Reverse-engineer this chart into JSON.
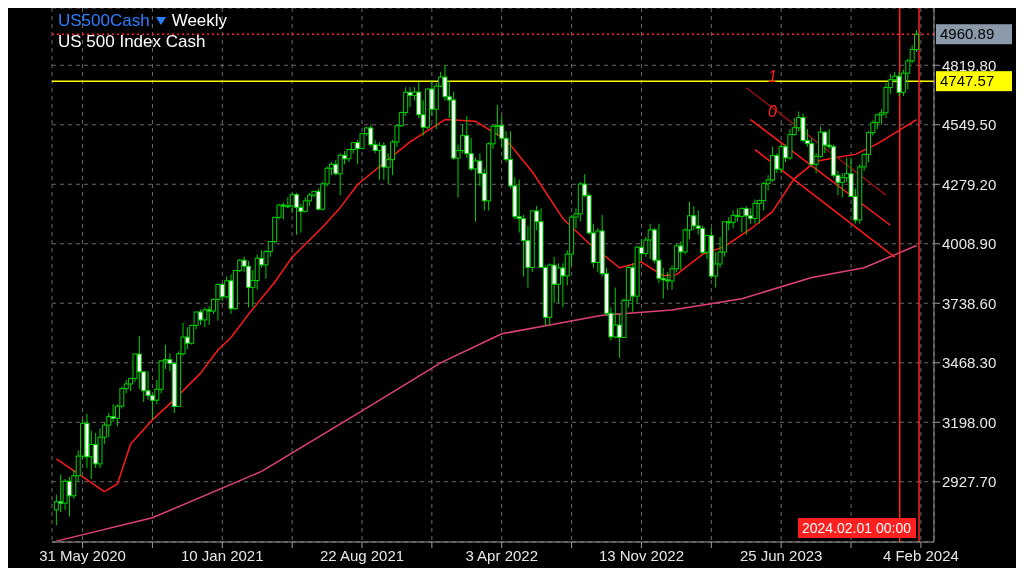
{
  "chart_data": {
    "type": "candlestick",
    "title": "US500Cash",
    "subtitle": "US 500 Index Cash",
    "annotations": [
      "Weekly",
      {
        "text": "1",
        "x": "2023-06-11",
        "y": 4763
      },
      {
        "text": "0",
        "x": "2023-06-11",
        "y": 4604
      }
    ],
    "color": "#00d000",
    "x": [
      "2020-04-19",
      "2020-04-26",
      "2020-05-03",
      "2020-05-10",
      "2020-05-17",
      "2020-05-24",
      "2020-05-31",
      "2020-06-07",
      "2020-06-14",
      "2020-06-21",
      "2020-06-28",
      "2020-07-05",
      "2020-07-12",
      "2020-07-19",
      "2020-07-26",
      "2020-08-02",
      "2020-08-09",
      "2020-08-16",
      "2020-08-23",
      "2020-08-30",
      "2020-09-06",
      "2020-09-13",
      "2020-09-20",
      "2020-09-27",
      "2020-10-04",
      "2020-10-11",
      "2020-10-18",
      "2020-10-25",
      "2020-11-01",
      "2020-11-08",
      "2020-11-15",
      "2020-11-22",
      "2020-11-29",
      "2020-12-06",
      "2020-12-13",
      "2020-12-20",
      "2020-12-27",
      "2021-01-03",
      "2021-01-10",
      "2021-01-17",
      "2021-01-24",
      "2021-01-31",
      "2021-02-07",
      "2021-02-14",
      "2021-02-21",
      "2021-02-28",
      "2021-03-07",
      "2021-03-14",
      "2021-03-21",
      "2021-03-28",
      "2021-04-04",
      "2021-04-11",
      "2021-04-18",
      "2021-04-25",
      "2021-05-02",
      "2021-05-09",
      "2021-05-16",
      "2021-05-23",
      "2021-05-30",
      "2021-06-06",
      "2021-06-13",
      "2021-06-20",
      "2021-06-27",
      "2021-07-04",
      "2021-07-11",
      "2021-07-18",
      "2021-07-25",
      "2021-08-01",
      "2021-08-08",
      "2021-08-15",
      "2021-08-22",
      "2021-08-29",
      "2021-09-05",
      "2021-09-12",
      "2021-09-19",
      "2021-09-26",
      "2021-10-03",
      "2021-10-10",
      "2021-10-17",
      "2021-10-24",
      "2021-10-31",
      "2021-11-07",
      "2021-11-14",
      "2021-11-21",
      "2021-11-28",
      "2021-12-05",
      "2021-12-12",
      "2021-12-19",
      "2021-12-26",
      "2022-01-02",
      "2022-01-09",
      "2022-01-16",
      "2022-01-23",
      "2022-01-30",
      "2022-02-06",
      "2022-02-13",
      "2022-02-20",
      "2022-02-27",
      "2022-03-06",
      "2022-03-13",
      "2022-03-20",
      "2022-03-27",
      "2022-04-03",
      "2022-04-10",
      "2022-04-17",
      "2022-04-24",
      "2022-05-01",
      "2022-05-08",
      "2022-05-15",
      "2022-05-22",
      "2022-05-29",
      "2022-06-05",
      "2022-06-12",
      "2022-06-19",
      "2022-06-26",
      "2022-07-03",
      "2022-07-10",
      "2022-07-17",
      "2022-07-24",
      "2022-07-31",
      "2022-08-07",
      "2022-08-14",
      "2022-08-21",
      "2022-08-28",
      "2022-09-04",
      "2022-09-11",
      "2022-09-18",
      "2022-09-25",
      "2022-10-02",
      "2022-10-09",
      "2022-10-16",
      "2022-10-23",
      "2022-10-30",
      "2022-11-06",
      "2022-11-13",
      "2022-11-20",
      "2022-11-27",
      "2022-12-04",
      "2022-12-11",
      "2022-12-18",
      "2022-12-25",
      "2023-01-01",
      "2023-01-08",
      "2023-01-15",
      "2023-01-22",
      "2023-01-29",
      "2023-02-05",
      "2023-02-12",
      "2023-02-19",
      "2023-02-26",
      "2023-03-05",
      "2023-03-12",
      "2023-03-19",
      "2023-03-26",
      "2023-04-02",
      "2023-04-09",
      "2023-04-16",
      "2023-04-23",
      "2023-04-30",
      "2023-05-07",
      "2023-05-14",
      "2023-05-21",
      "2023-05-28",
      "2023-06-04",
      "2023-06-11",
      "2023-06-18",
      "2023-06-25",
      "2023-07-02",
      "2023-07-09",
      "2023-07-16",
      "2023-07-23",
      "2023-07-30",
      "2023-08-06",
      "2023-08-13",
      "2023-08-20",
      "2023-08-27",
      "2023-09-03",
      "2023-09-10",
      "2023-09-17",
      "2023-09-24",
      "2023-10-01",
      "2023-10-08",
      "2023-10-15",
      "2023-10-22",
      "2023-10-29",
      "2023-11-05",
      "2023-11-12",
      "2023-11-19",
      "2023-11-26",
      "2023-12-03",
      "2023-12-10",
      "2023-12-17",
      "2023-12-24",
      "2023-12-31",
      "2024-01-07",
      "2024-01-14",
      "2024-01-21",
      "2024-01-28"
    ],
    "ohlc": [
      [
        2800,
        2870,
        2730,
        2837
      ],
      [
        2837,
        2960,
        2790,
        2830
      ],
      [
        2830,
        2940,
        2800,
        2930
      ],
      [
        2930,
        2950,
        2770,
        2864
      ],
      [
        2864,
        2980,
        2850,
        2955
      ],
      [
        2955,
        3070,
        2930,
        3044
      ],
      [
        3044,
        3212,
        3030,
        3193
      ],
      [
        3193,
        3235,
        2990,
        3041
      ],
      [
        3041,
        3160,
        2940,
        3097
      ],
      [
        3097,
        3150,
        2990,
        3009
      ],
      [
        3009,
        3170,
        2990,
        3130
      ],
      [
        3130,
        3200,
        3100,
        3185
      ],
      [
        3185,
        3240,
        3130,
        3224
      ],
      [
        3224,
        3280,
        3200,
        3216
      ],
      [
        3216,
        3280,
        3180,
        3271
      ],
      [
        3271,
        3360,
        3260,
        3351
      ],
      [
        3351,
        3390,
        3330,
        3372
      ],
      [
        3372,
        3400,
        3340,
        3397
      ],
      [
        3397,
        3510,
        3380,
        3508
      ],
      [
        3508,
        3590,
        3350,
        3427
      ],
      [
        3427,
        3430,
        3290,
        3341
      ],
      [
        3341,
        3430,
        3300,
        3319
      ],
      [
        3319,
        3330,
        3210,
        3298
      ],
      [
        3298,
        3390,
        3280,
        3348
      ],
      [
        3348,
        3480,
        3330,
        3477
      ],
      [
        3477,
        3550,
        3440,
        3483
      ],
      [
        3483,
        3510,
        3430,
        3465
      ],
      [
        3465,
        3470,
        3240,
        3270
      ],
      [
        3270,
        3520,
        3270,
        3509
      ],
      [
        3509,
        3650,
        3500,
        3585
      ],
      [
        3585,
        3630,
        3530,
        3557
      ],
      [
        3557,
        3640,
        3550,
        3638
      ],
      [
        3638,
        3700,
        3620,
        3699
      ],
      [
        3699,
        3710,
        3640,
        3663
      ],
      [
        3663,
        3720,
        3630,
        3709
      ],
      [
        3709,
        3725,
        3640,
        3703
      ],
      [
        3703,
        3760,
        3690,
        3756
      ],
      [
        3756,
        3830,
        3660,
        3824
      ],
      [
        3824,
        3830,
        3750,
        3768
      ],
      [
        3768,
        3860,
        3760,
        3841
      ],
      [
        3841,
        3870,
        3690,
        3714
      ],
      [
        3714,
        3890,
        3710,
        3887
      ],
      [
        3887,
        3940,
        3880,
        3934
      ],
      [
        3934,
        3950,
        3880,
        3907
      ],
      [
        3907,
        3930,
        3720,
        3811
      ],
      [
        3811,
        3890,
        3720,
        3842
      ],
      [
        3842,
        3960,
        3800,
        3943
      ],
      [
        3943,
        3980,
        3900,
        3913
      ],
      [
        3913,
        3980,
        3850,
        3974
      ],
      [
        3974,
        4020,
        3950,
        4019
      ],
      [
        4019,
        4130,
        4010,
        4129
      ],
      [
        4129,
        4190,
        4120,
        4185
      ],
      [
        4185,
        4195,
        4120,
        4180
      ],
      [
        4180,
        4220,
        4170,
        4181
      ],
      [
        4181,
        4240,
        4150,
        4232
      ],
      [
        4232,
        4240,
        4050,
        4174
      ],
      [
        4174,
        4190,
        4060,
        4156
      ],
      [
        4156,
        4220,
        4150,
        4204
      ],
      [
        4204,
        4240,
        4180,
        4230
      ],
      [
        4230,
        4250,
        4220,
        4247
      ],
      [
        4247,
        4260,
        4160,
        4166
      ],
      [
        4166,
        4290,
        4160,
        4281
      ],
      [
        4281,
        4360,
        4270,
        4352
      ],
      [
        4352,
        4380,
        4320,
        4370
      ],
      [
        4370,
        4390,
        4320,
        4327
      ],
      [
        4327,
        4420,
        4230,
        4411
      ],
      [
        4411,
        4430,
        4370,
        4395
      ],
      [
        4395,
        4440,
        4380,
        4437
      ],
      [
        4437,
        4470,
        4420,
        4468
      ],
      [
        4468,
        4480,
        4370,
        4441
      ],
      [
        4441,
        4510,
        4440,
        4509
      ],
      [
        4509,
        4540,
        4500,
        4535
      ],
      [
        4535,
        4550,
        4450,
        4459
      ],
      [
        4459,
        4480,
        4420,
        4433
      ],
      [
        4433,
        4470,
        4300,
        4455
      ],
      [
        4455,
        4470,
        4300,
        4357
      ],
      [
        4357,
        4420,
        4280,
        4391
      ],
      [
        4391,
        4480,
        4320,
        4471
      ],
      [
        4471,
        4550,
        4450,
        4545
      ],
      [
        4545,
        4610,
        4540,
        4605
      ],
      [
        4605,
        4720,
        4590,
        4697
      ],
      [
        4697,
        4720,
        4630,
        4683
      ],
      [
        4683,
        4720,
        4660,
        4698
      ],
      [
        4698,
        4745,
        4580,
        4595
      ],
      [
        4595,
        4660,
        4500,
        4538
      ],
      [
        4538,
        4715,
        4530,
        4712
      ],
      [
        4712,
        4750,
        4590,
        4620
      ],
      [
        4620,
        4740,
        4530,
        4725
      ],
      [
        4725,
        4790,
        4720,
        4766
      ],
      [
        4766,
        4820,
        4660,
        4677
      ],
      [
        4677,
        4750,
        4580,
        4662
      ],
      [
        4662,
        4700,
        4390,
        4398
      ],
      [
        4398,
        4460,
        4220,
        4432
      ],
      [
        4432,
        4550,
        4420,
        4500
      ],
      [
        4500,
        4590,
        4400,
        4418
      ],
      [
        4418,
        4490,
        4340,
        4349
      ],
      [
        4349,
        4400,
        4110,
        4385
      ],
      [
        4385,
        4420,
        4270,
        4329
      ],
      [
        4329,
        4350,
        4160,
        4204
      ],
      [
        4204,
        4470,
        4160,
        4463
      ],
      [
        4463,
        4550,
        4440,
        4543
      ],
      [
        4543,
        4640,
        4500,
        4546
      ],
      [
        4546,
        4590,
        4450,
        4488
      ],
      [
        4488,
        4520,
        4380,
        4392
      ],
      [
        4392,
        4520,
        4260,
        4272
      ],
      [
        4272,
        4310,
        4120,
        4132
      ],
      [
        4132,
        4300,
        4060,
        4123
      ],
      [
        4123,
        4140,
        3860,
        4023
      ],
      [
        4023,
        4090,
        3810,
        3901
      ],
      [
        3901,
        4160,
        3880,
        4158
      ],
      [
        4158,
        4180,
        4070,
        4109
      ],
      [
        4109,
        4170,
        3900,
        3901
      ],
      [
        3901,
        3910,
        3640,
        3675
      ],
      [
        3675,
        3920,
        3640,
        3912
      ],
      [
        3912,
        3950,
        3740,
        3825
      ],
      [
        3825,
        3920,
        3740,
        3899
      ],
      [
        3899,
        3920,
        3720,
        3863
      ],
      [
        3863,
        3980,
        3820,
        3962
      ],
      [
        3962,
        4140,
        3910,
        4130
      ],
      [
        4130,
        4170,
        4080,
        4145
      ],
      [
        4145,
        4290,
        4110,
        4280
      ],
      [
        4280,
        4325,
        4220,
        4228
      ],
      [
        4228,
        4240,
        4050,
        4058
      ],
      [
        4058,
        4100,
        3900,
        3924
      ],
      [
        3924,
        4080,
        3880,
        4067
      ],
      [
        4067,
        4140,
        3860,
        3873
      ],
      [
        3873,
        3900,
        3680,
        3693
      ],
      [
        3693,
        3720,
        3570,
        3586
      ],
      [
        3586,
        3810,
        3580,
        3640
      ],
      [
        3640,
        3690,
        3490,
        3583
      ],
      [
        3583,
        3760,
        3580,
        3752
      ],
      [
        3752,
        3910,
        3720,
        3901
      ],
      [
        3901,
        3920,
        3700,
        3771
      ],
      [
        3771,
        4000,
        3740,
        3993
      ],
      [
        3993,
        4030,
        3930,
        3965
      ],
      [
        3965,
        4040,
        3950,
        4026
      ],
      [
        4026,
        4100,
        3940,
        4072
      ],
      [
        4072,
        4080,
        3920,
        3934
      ],
      [
        3934,
        4100,
        3830,
        3852
      ],
      [
        3852,
        3900,
        3760,
        3845
      ],
      [
        3845,
        3880,
        3800,
        3840
      ],
      [
        3840,
        3910,
        3800,
        3895
      ],
      [
        3895,
        4010,
        3880,
        3999
      ],
      [
        3999,
        4020,
        3890,
        3972
      ],
      [
        3972,
        4080,
        3960,
        4071
      ],
      [
        4071,
        4200,
        4030,
        4136
      ],
      [
        4136,
        4180,
        4070,
        4090
      ],
      [
        4090,
        4160,
        4050,
        4079
      ],
      [
        4079,
        4090,
        3960,
        3970
      ],
      [
        3970,
        4050,
        3940,
        4046
      ],
      [
        4046,
        4080,
        3850,
        3862
      ],
      [
        3862,
        3970,
        3810,
        3917
      ],
      [
        3917,
        4040,
        3900,
        3971
      ],
      [
        3971,
        4110,
        3950,
        4109
      ],
      [
        4109,
        4130,
        4070,
        4105
      ],
      [
        4105,
        4160,
        4080,
        4138
      ],
      [
        4138,
        4170,
        4110,
        4133
      ],
      [
        4133,
        4175,
        4060,
        4169
      ],
      [
        4169,
        4180,
        4050,
        4136
      ],
      [
        4136,
        4170,
        4100,
        4124
      ],
      [
        4124,
        4210,
        4100,
        4192
      ],
      [
        4192,
        4210,
        4100,
        4205
      ],
      [
        4205,
        4290,
        4160,
        4282
      ],
      [
        4282,
        4320,
        4250,
        4299
      ],
      [
        4299,
        4450,
        4290,
        4410
      ],
      [
        4410,
        4420,
        4330,
        4348
      ],
      [
        4348,
        4460,
        4330,
        4450
      ],
      [
        4450,
        4460,
        4380,
        4399
      ],
      [
        4399,
        4530,
        4390,
        4505
      ],
      [
        4505,
        4580,
        4500,
        4536
      ],
      [
        4536,
        4610,
        4520,
        4582
      ],
      [
        4582,
        4600,
        4470,
        4478
      ],
      [
        4478,
        4530,
        4450,
        4464
      ],
      [
        4464,
        4490,
        4360,
        4370
      ],
      [
        4370,
        4420,
        4330,
        4406
      ],
      [
        4406,
        4540,
        4400,
        4516
      ],
      [
        4516,
        4520,
        4420,
        4457
      ],
      [
        4457,
        4530,
        4440,
        4450
      ],
      [
        4450,
        4460,
        4310,
        4320
      ],
      [
        4320,
        4340,
        4230,
        4288
      ],
      [
        4288,
        4330,
        4220,
        4309
      ],
      [
        4309,
        4400,
        4290,
        4327
      ],
      [
        4327,
        4400,
        4220,
        4224
      ],
      [
        4224,
        4260,
        4100,
        4117
      ],
      [
        4117,
        4370,
        4100,
        4358
      ],
      [
        4358,
        4420,
        4340,
        4415
      ],
      [
        4415,
        4520,
        4380,
        4514
      ],
      [
        4514,
        4570,
        4500,
        4559
      ],
      [
        4559,
        4600,
        4530,
        4595
      ],
      [
        4595,
        4620,
        4550,
        4604
      ],
      [
        4604,
        4740,
        4580,
        4719
      ],
      [
        4719,
        4780,
        4690,
        4754
      ],
      [
        4754,
        4790,
        4740,
        4770
      ],
      [
        4770,
        4790,
        4680,
        4697
      ],
      [
        4697,
        4800,
        4680,
        4784
      ],
      [
        4784,
        4850,
        4710,
        4840
      ],
      [
        4840,
        4910,
        4830,
        4891
      ],
      [
        4891,
        4980,
        4880,
        4960.89
      ]
    ],
    "series": [
      {
        "type": "line",
        "color": "#ff1a1a",
        "x": [
          "2020-04-19",
          "2020-07-05",
          "2020-07-26",
          "2020-08-16",
          "2020-09-20",
          "2020-10-25",
          "2020-12-06",
          "2021-01-03",
          "2021-01-24",
          "2021-02-21",
          "2021-04-04",
          "2021-05-02",
          "2021-06-20",
          "2021-07-18",
          "2021-08-15",
          "2021-09-05",
          "2021-11-07",
          "2022-01-02",
          "2022-02-20",
          "2022-04-10",
          "2022-05-22",
          "2022-07-10",
          "2022-08-21",
          "2022-10-09",
          "2022-11-13",
          "2022-12-18",
          "2023-01-08",
          "2023-01-22",
          "2023-02-19",
          "2023-03-26",
          "2023-05-07",
          "2023-06-11",
          "2023-07-16",
          "2023-08-20",
          "2023-09-24",
          "2023-10-22",
          "2023-11-26",
          "2024-01-28"
        ],
        "values": [
          3032,
          2883,
          2918,
          3099,
          3209,
          3301,
          3420,
          3526,
          3583,
          3688,
          3834,
          3948,
          4085,
          4173,
          4278,
          4327,
          4472,
          4573,
          4565,
          4481,
          4336,
          4124,
          4010,
          3900,
          3926,
          3864,
          3869,
          3900,
          3961,
          3996,
          4076,
          4155,
          4305,
          4384,
          4402,
          4415,
          4463,
          4573
        ]
      },
      {
        "type": "line",
        "color": "#e0407a",
        "x": [
          "2020-04-19",
          "2020-09-20",
          "2021-03-14",
          "2021-08-22",
          "2021-12-26",
          "2022-04-03",
          "2022-06-19",
          "2022-09-11",
          "2023-01-01",
          "2023-04-23",
          "2023-08-13",
          "2023-11-05",
          "2024-01-28"
        ],
        "values": [
          2658,
          2764,
          2975,
          3250,
          3468,
          3600,
          3640,
          3684,
          3708,
          3759,
          3856,
          3900,
          4001
        ]
      },
      {
        "type": "line",
        "color": "#8b1010",
        "x": [
          "2023-04-30",
          "2023-12-10"
        ],
        "values": [
          4718,
          4230
        ]
      },
      {
        "type": "line",
        "color": "#ff1a1a",
        "x": [
          "2023-05-07",
          "2023-12-17"
        ],
        "values": [
          4573,
          4093
        ]
      },
      {
        "type": "line",
        "color": "#ff1a1a",
        "x": [
          "2023-05-14",
          "2023-12-24"
        ],
        "values": [
          4437,
          3948
        ]
      }
    ],
    "xlim": [
      "2020-04-12",
      "2024-02-25"
    ],
    "xticks": [
      {
        "value": "2020-05-31",
        "label": "31 May 2020"
      },
      {
        "value": "2020-09-20",
        "label": null
      },
      {
        "value": "2021-01-10",
        "label": "10 Jan 2021"
      },
      {
        "value": "2021-05-02",
        "label": null
      },
      {
        "value": "2021-08-22",
        "label": "22 Aug 2021"
      },
      {
        "value": "2021-12-12",
        "label": null
      },
      {
        "value": "2022-04-03",
        "label": "3 Apr 2022"
      },
      {
        "value": "2022-07-24",
        "label": null
      },
      {
        "value": "2022-11-13",
        "label": "13 Nov 2022"
      },
      {
        "value": "2023-03-05",
        "label": null
      },
      {
        "value": "2023-06-25",
        "label": "25 Jun 2023"
      },
      {
        "value": "2023-10-15",
        "label": null
      },
      {
        "value": "2024-02-04",
        "label": "4 Feb 2024"
      }
    ],
    "ylim": [
      2654,
      5080
    ],
    "yticks": [
      {
        "value": 2927.7,
        "label": "2927.70"
      },
      {
        "value": 3198,
        "label": "3198.00"
      },
      {
        "value": 3468.3,
        "label": "3468.30"
      },
      {
        "value": 3738.6,
        "label": "3738.60"
      },
      {
        "value": 4008.9,
        "label": "4008.90"
      },
      {
        "value": 4279.2,
        "label": "4279.20"
      },
      {
        "value": 4549.5,
        "label": "4549.50"
      },
      {
        "value": 4819.8,
        "label": "4819.80"
      }
    ],
    "ref_lines": [
      {
        "axis": "y",
        "value": 4747.57,
        "label": "4747.57",
        "color": "#ffff00",
        "line_style": "solid"
      },
      {
        "axis": "y",
        "value": 4960.89,
        "label": "4960.89",
        "color": "#ff2020",
        "line_style": "dotted"
      },
      {
        "axis": "x",
        "value": "2024-01-01",
        "color": "#ff2020",
        "line_style": "solid"
      },
      {
        "axis": "x",
        "value": "2024-02-01",
        "label": "2024.02.01 00:00",
        "color": "#ff2020",
        "line_style": "solid"
      }
    ],
    "grid": true
  }
}
